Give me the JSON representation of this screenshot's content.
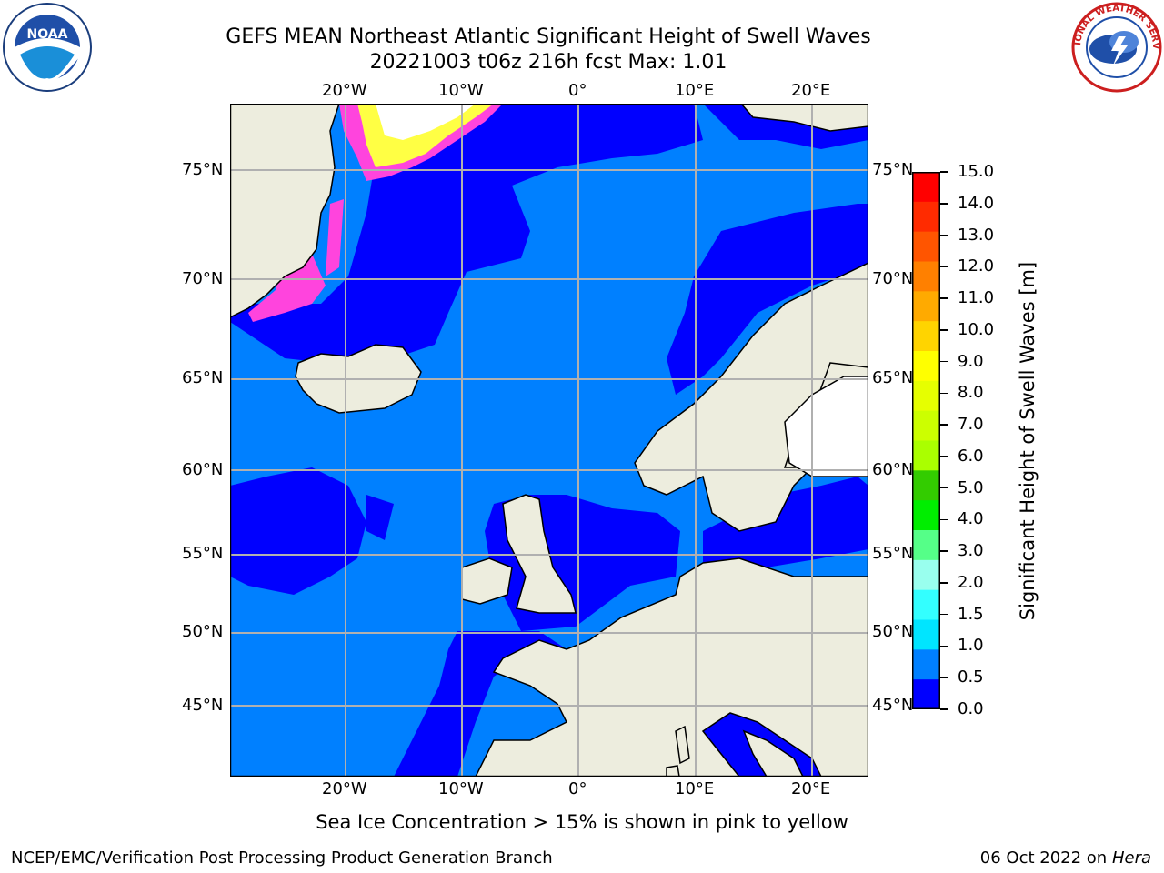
{
  "title": {
    "line1": "GEFS MEAN Northeast Atlantic Significant Height of Swell Waves",
    "line2": "20221003 t06z 216h fcst   Max: 1.01"
  },
  "logos": {
    "left": "NOAA",
    "right": "NATIONAL WEATHER SERVICE"
  },
  "axes": {
    "lon_top": [
      "20°W",
      "10°W",
      "0°",
      "10°E",
      "20°E"
    ],
    "lon_bottom": [
      "20°W",
      "10°W",
      "0°",
      "10°E",
      "20°E"
    ],
    "lat_left": [
      "75°N",
      "70°N",
      "65°N",
      "60°N",
      "55°N",
      "50°N",
      "45°N"
    ],
    "lat_right": [
      "75°N",
      "70°N",
      "65°N",
      "60°N",
      "55°N",
      "50°N",
      "45°N"
    ]
  },
  "colorbar": {
    "title": "Significant Height of Swell Waves [m]",
    "labels": [
      "15.0",
      "14.0",
      "13.0",
      "12.0",
      "11.0",
      "10.0",
      "9.0",
      "8.0",
      "7.0",
      "6.0",
      "5.0",
      "4.0",
      "3.0",
      "2.0",
      "1.5",
      "1.0",
      "0.5",
      "0.0"
    ],
    "colors": [
      "#ff0000",
      "#ff2b00",
      "#ff5500",
      "#ff8000",
      "#ffaa00",
      "#ffd400",
      "#ffff00",
      "#e6ff00",
      "#ccff00",
      "#aaff00",
      "#33cc00",
      "#00ee00",
      "#55ff88",
      "#99ffee",
      "#33ffff",
      "#00e5ff",
      "#0080ff",
      "#0000ff"
    ]
  },
  "colors": {
    "land": "#ededde",
    "sea_low": "#0000ff",
    "sea_mid": "#0080ff",
    "ice_pink": "#ff44dd",
    "ice_yellow": "#ffff44",
    "grid": "#b0b0b0"
  },
  "note": "Sea Ice Concentration > 15% is shown in pink to yellow",
  "footer": {
    "left": "NCEP/EMC/Verification Post Processing Product Generation Branch",
    "right_date": "06 Oct 2022 on ",
    "right_host": "Hera"
  }
}
